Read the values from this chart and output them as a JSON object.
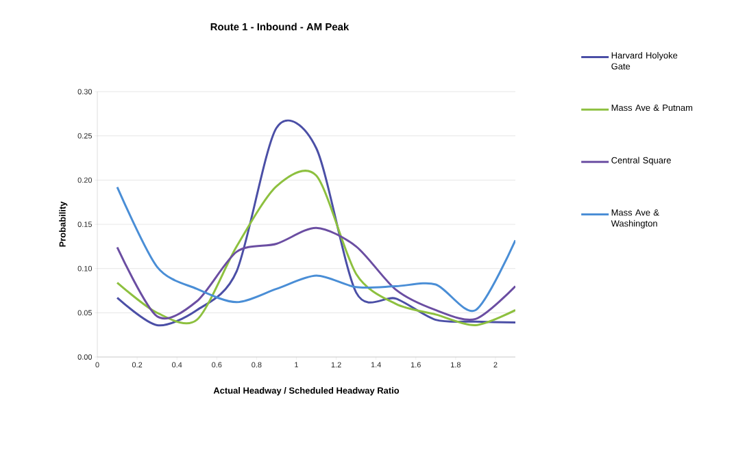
{
  "chart_data": {
    "type": "line",
    "title": "Route 1 - Inbound - AM Peak",
    "xlabel": "Actual Headway / Scheduled Headway Ratio",
    "ylabel": "Probability",
    "x": [
      0.1,
      0.3,
      0.5,
      0.7,
      0.9,
      1.1,
      1.3,
      1.5,
      1.7,
      1.9,
      2.1
    ],
    "series": [
      {
        "name": "Harvard Holyoke Gate",
        "color": "#4b4fa6",
        "values": [
          0.067,
          0.036,
          0.053,
          0.097,
          0.259,
          0.236,
          0.073,
          0.066,
          0.042,
          0.04,
          0.039
        ]
      },
      {
        "name": "Mass Ave & Putnam",
        "color": "#8dc03f",
        "values": [
          0.084,
          0.05,
          0.042,
          0.125,
          0.193,
          0.205,
          0.094,
          0.06,
          0.048,
          0.036,
          0.053
        ]
      },
      {
        "name": "Central Square",
        "color": "#6b4ea2",
        "values": [
          0.124,
          0.046,
          0.063,
          0.119,
          0.128,
          0.146,
          0.125,
          0.076,
          0.053,
          0.043,
          0.08
        ]
      },
      {
        "name": "Mass Ave & Washington",
        "color": "#4a8ed6",
        "values": [
          0.192,
          0.102,
          0.077,
          0.062,
          0.077,
          0.092,
          0.079,
          0.08,
          0.082,
          0.053,
          0.132
        ]
      }
    ],
    "xlim": [
      0,
      2.1
    ],
    "xticks": [
      0,
      0.2,
      0.4,
      0.6,
      0.8,
      1,
      1.2,
      1.4,
      1.6,
      1.8,
      2
    ],
    "ylim": [
      0,
      0.3
    ],
    "yticks": [
      {
        "value": 0,
        "label": "0.00"
      },
      {
        "value": 0.05,
        "label": "0.05"
      },
      {
        "value": 0.1,
        "label": "0.10"
      },
      {
        "value": 0.15,
        "label": "0.15"
      },
      {
        "value": 0.2,
        "label": "0.20"
      },
      {
        "value": 0.25,
        "label": "0.25"
      },
      {
        "value": 0.3,
        "label": "0.30"
      }
    ],
    "grid": "y",
    "legend": "right",
    "marker": "none",
    "line_style": "solid"
  }
}
